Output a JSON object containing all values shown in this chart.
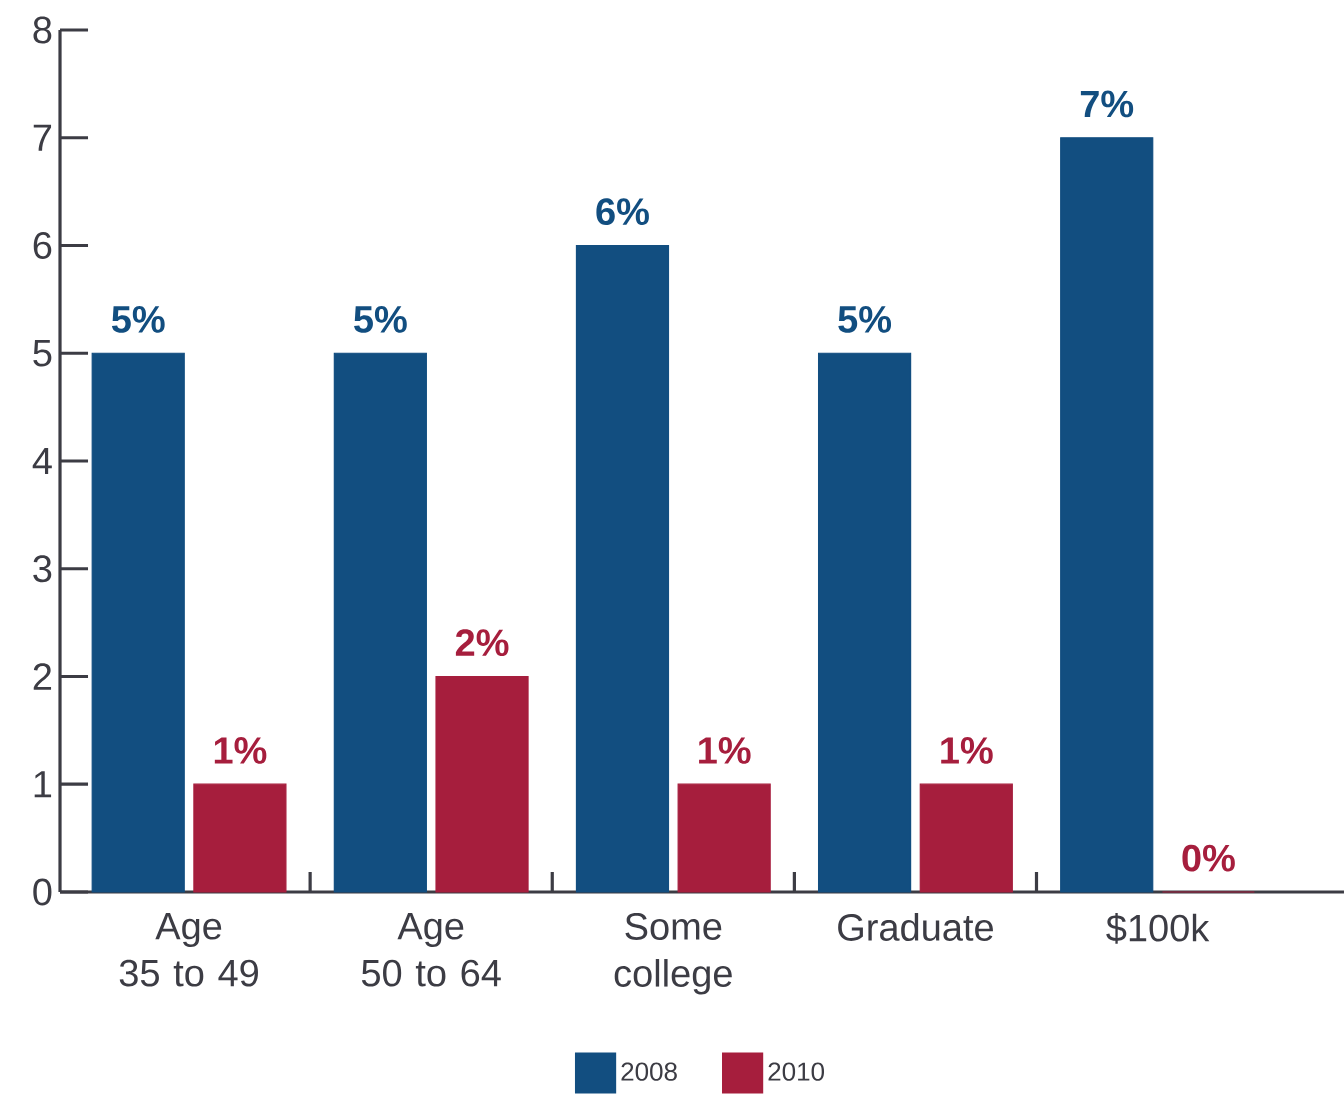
{
  "chart_data": {
    "type": "bar",
    "categories": [
      "Age 35 to 49",
      "Age 50 to 64",
      "Some college",
      "Graduate",
      "$100k"
    ],
    "series": [
      {
        "name": "2008",
        "color": "#124e80",
        "values": [
          5,
          5,
          6,
          5,
          7
        ],
        "value_labels": [
          "5%",
          "5%",
          "6%",
          "5%",
          "7%"
        ]
      },
      {
        "name": "2010",
        "color": "#a61e3d",
        "values": [
          1,
          2,
          1,
          1,
          0
        ],
        "value_labels": [
          "1%",
          "2%",
          "1%",
          "1%",
          "0%"
        ]
      }
    ],
    "ylim": [
      0,
      8
    ],
    "yticks": [
      0,
      1,
      2,
      3,
      4,
      5,
      6,
      7,
      8
    ],
    "legend": "bottom"
  }
}
